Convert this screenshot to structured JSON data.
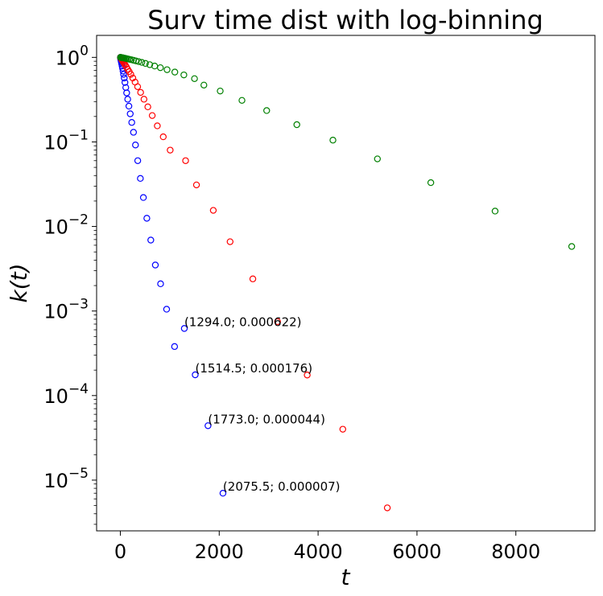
{
  "chart_data": {
    "type": "scatter",
    "title": "Surv time dist with log-binning",
    "xlabel": "t",
    "ylabel": "k(t)",
    "xlim": [
      -480,
      9600
    ],
    "ylim_log10": [
      -5.6,
      0.26
    ],
    "yscale": "log",
    "grid": false,
    "x_ticks": [
      {
        "value": 0,
        "label": "0"
      },
      {
        "value": 2000,
        "label": "2000"
      },
      {
        "value": 4000,
        "label": "4000"
      },
      {
        "value": 6000,
        "label": "6000"
      },
      {
        "value": 8000,
        "label": "8000"
      }
    ],
    "y_ticks": [
      {
        "exp": 0,
        "base": "10",
        "sup": "0"
      },
      {
        "exp": -1,
        "base": "10",
        "sup": "−1"
      },
      {
        "exp": -2,
        "base": "10",
        "sup": "−2"
      },
      {
        "exp": -3,
        "base": "10",
        "sup": "−3"
      },
      {
        "exp": -4,
        "base": "10",
        "sup": "−4"
      },
      {
        "exp": -5,
        "base": "10",
        "sup": "−5"
      }
    ],
    "series": [
      {
        "color": "#0000ff",
        "x": [
          1,
          3,
          6,
          10,
          15,
          21,
          28,
          36,
          45,
          55,
          66,
          79,
          93,
          110,
          128,
          149,
          173,
          200,
          231,
          266,
          306,
          352,
          405,
          466,
          536,
          616,
          708,
          814,
          936,
          1097,
          1294,
          1514.5,
          1773,
          2075.5
        ],
        "y": [
          1.0,
          0.985,
          0.965,
          0.94,
          0.91,
          0.875,
          0.835,
          0.79,
          0.745,
          0.69,
          0.63,
          0.57,
          0.505,
          0.44,
          0.38,
          0.32,
          0.265,
          0.215,
          0.17,
          0.13,
          0.092,
          0.06,
          0.037,
          0.022,
          0.0125,
          0.0069,
          0.0035,
          0.0021,
          0.00105,
          0.00038,
          0.000622,
          0.000176,
          4.4e-05,
          7e-06
        ]
      },
      {
        "color": "#ff0000",
        "x": [
          2,
          5,
          9,
          14,
          20,
          28,
          38,
          50,
          64,
          80,
          100,
          122,
          148,
          178,
          212,
          252,
          298,
          350,
          410,
          478,
          556,
          645,
          748,
          868,
          1008,
          1320,
          1540,
          1880,
          2220,
          2680,
          3180,
          3780,
          4500,
          5400
        ],
        "y": [
          1.0,
          0.99,
          0.985,
          0.975,
          0.96,
          0.945,
          0.925,
          0.9,
          0.875,
          0.845,
          0.81,
          0.77,
          0.725,
          0.68,
          0.63,
          0.57,
          0.51,
          0.45,
          0.385,
          0.32,
          0.26,
          0.205,
          0.155,
          0.115,
          0.08,
          0.06,
          0.031,
          0.0155,
          0.0066,
          0.0024,
          0.00075,
          0.000175,
          4e-05,
          4.7e-06
        ]
      },
      {
        "color": "#008000",
        "x": [
          3,
          8,
          15,
          24,
          35,
          48,
          64,
          82,
          103,
          127,
          155,
          187,
          224,
          266,
          314,
          370,
          434,
          508,
          594,
          694,
          810,
          945,
          1102,
          1285,
          1500,
          1690,
          2020,
          2460,
          2960,
          3570,
          4300,
          5200,
          6280,
          7580,
          9130
        ],
        "y": [
          1.0,
          0.998,
          0.996,
          0.994,
          0.991,
          0.988,
          0.984,
          0.979,
          0.973,
          0.966,
          0.958,
          0.948,
          0.937,
          0.924,
          0.909,
          0.892,
          0.872,
          0.848,
          0.82,
          0.79,
          0.755,
          0.715,
          0.67,
          0.62,
          0.56,
          0.47,
          0.4,
          0.31,
          0.235,
          0.16,
          0.105,
          0.063,
          0.033,
          0.0152,
          0.0058
        ]
      }
    ],
    "annotations": [
      {
        "text": "(1294.0; 0.000622)",
        "x": 1294,
        "y": 0.000622
      },
      {
        "text": "(1514.5; 0.000176)",
        "x": 1514.5,
        "y": 0.000176
      },
      {
        "text": "(1773.0; 0.000044)",
        "x": 1773,
        "y": 4.4e-05
      },
      {
        "text": "(2075.5; 0.000007)",
        "x": 2075.5,
        "y": 7e-06
      }
    ]
  }
}
